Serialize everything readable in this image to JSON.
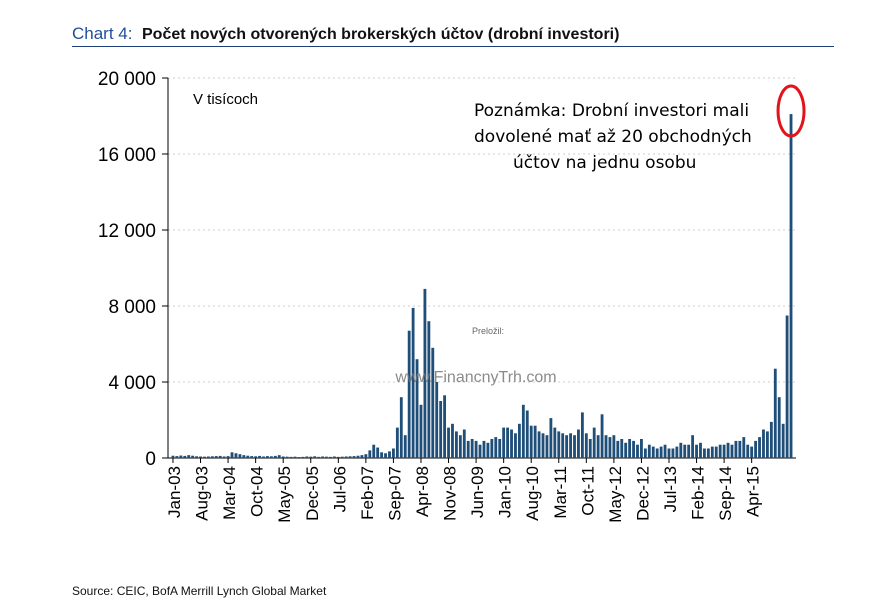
{
  "header": {
    "label": "Chart 4:",
    "title": "Počet nových otvorených brokerských účtov (drobní investori)"
  },
  "source": "Source: CEIC, BofA Merrill Lynch Global Market",
  "watermark": "www.FinancnyTrh.com",
  "translated_by": "Preložil:",
  "colors": {
    "bar": "#1f4e79",
    "highlight": "#e2141b",
    "title_accent": "#1f4e9a"
  },
  "chart_data": {
    "type": "bar",
    "unit_note": "V tisícoch",
    "annotation": "Poznámka: Drobní investori mali dovolené mať až 20 obchodných účtov na jednu osobu",
    "annotation_lines": [
      "Poznámka: Drobní investori mali",
      "dovolené mať až 20 obchodných",
      "účtov na jednu osobu"
    ],
    "ylim": [
      0,
      20000
    ],
    "yticks": [
      0,
      4000,
      8000,
      12000,
      16000,
      20000
    ],
    "ytick_labels": [
      "0",
      "4 000",
      "8 000",
      "12 000",
      "16 000",
      "20 000"
    ],
    "grid": true,
    "xtick_labels": [
      "Jan-03",
      "Aug-03",
      "Mar-04",
      "Oct-04",
      "May-05",
      "Dec-05",
      "Jul-06",
      "Feb-07",
      "Sep-07",
      "Apr-08",
      "Nov-08",
      "Jun-09",
      "Jan-10",
      "Aug-10",
      "Mar-11",
      "Oct-11",
      "May-12",
      "Dec-12",
      "Jul-13",
      "Feb-14",
      "Sep-14",
      "Apr-15"
    ],
    "start": "Jan-03",
    "end": "Apr-15",
    "highlight_last": true,
    "values": [
      120,
      100,
      130,
      110,
      150,
      120,
      90,
      80,
      70,
      80,
      90,
      100,
      110,
      80,
      100,
      300,
      250,
      200,
      150,
      120,
      100,
      90,
      110,
      80,
      100,
      90,
      110,
      150,
      80,
      70,
      60,
      70,
      50,
      60,
      80,
      70,
      90,
      60,
      80,
      70,
      60,
      80,
      60,
      70,
      80,
      90,
      100,
      120,
      150,
      200,
      400,
      700,
      550,
      300,
      250,
      350,
      500,
      1600,
      3200,
      1200,
      6700,
      7900,
      5200,
      2800,
      8900,
      7200,
      5800,
      4000,
      3000,
      3300,
      1600,
      1800,
      1400,
      1200,
      1500,
      900,
      1000,
      900,
      700,
      900,
      800,
      1000,
      1100,
      1000,
      1600,
      1600,
      1500,
      1300,
      1800,
      2800,
      2500,
      1700,
      1700,
      1400,
      1300,
      1200,
      2100,
      1600,
      1400,
      1300,
      1200,
      1300,
      1200,
      1500,
      2400,
      1300,
      1000,
      1600,
      1200,
      2300,
      1200,
      1100,
      1200,
      900,
      1000,
      800,
      1000,
      900,
      700,
      1000,
      500,
      700,
      600,
      500,
      600,
      700,
      500,
      500,
      600,
      800,
      700,
      700,
      1200,
      700,
      800,
      500,
      500,
      600,
      600,
      700,
      700,
      800,
      700,
      900,
      900,
      1100,
      700,
      600,
      900,
      1100,
      1500,
      1400,
      1900,
      4700,
      3200,
      1800,
      7500,
      18100
    ]
  }
}
